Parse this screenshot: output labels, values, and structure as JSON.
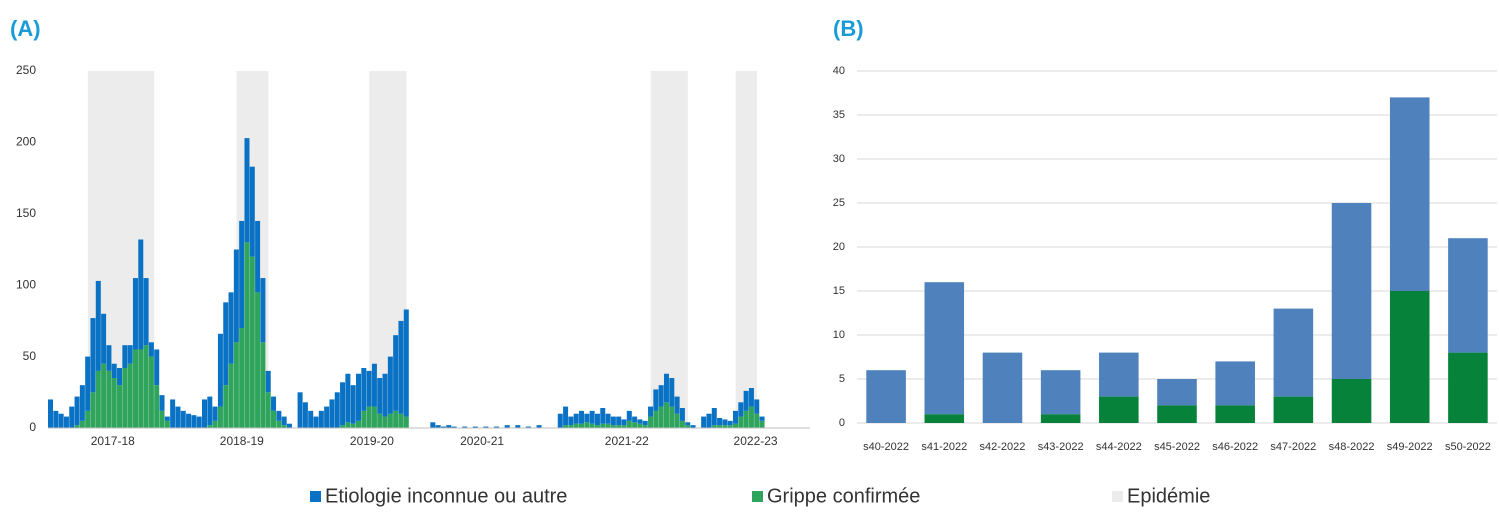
{
  "chart_data": [
    {
      "type": "bar",
      "title": "(A)",
      "stacked": true,
      "x": [
        0,
        2,
        4,
        6,
        8,
        10,
        12,
        14,
        16,
        18,
        20,
        22,
        24,
        26,
        28,
        30,
        32,
        34,
        36,
        38,
        40,
        42,
        44,
        46,
        48,
        50,
        52,
        54,
        56,
        58,
        60,
        62,
        64,
        66,
        68,
        70,
        72,
        74,
        76,
        78,
        80,
        82,
        84,
        86,
        88,
        90,
        94,
        96,
        98,
        100,
        102,
        104,
        106,
        108,
        110,
        112,
        114,
        116,
        118,
        120,
        122,
        124,
        126,
        128,
        130,
        132,
        134,
        144,
        146,
        148,
        150,
        152,
        156,
        160,
        164,
        168,
        172,
        176,
        180,
        184,
        192,
        194,
        196,
        198,
        200,
        202,
        204,
        206,
        208,
        210,
        212,
        214,
        216,
        218,
        220,
        222,
        224,
        226,
        228,
        230,
        232,
        234,
        236,
        238,
        240,
        242,
        246,
        248,
        250,
        252,
        254,
        256,
        258,
        260,
        262,
        264,
        266,
        268
      ],
      "series": [
        {
          "name": "Etiologie inconnue ou autre",
          "color": "#0a72c4",
          "values": [
            20,
            12,
            10,
            8,
            15,
            20,
            25,
            38,
            52,
            63,
            35,
            18,
            10,
            12,
            16,
            13,
            50,
            77,
            47,
            10,
            25,
            11,
            3,
            20,
            15,
            12,
            10,
            9,
            8,
            20,
            20,
            10,
            51,
            58,
            50,
            65,
            75,
            73,
            63,
            50,
            45,
            15,
            10,
            7,
            6,
            3,
            25,
            18,
            12,
            8,
            12,
            15,
            20,
            25,
            30,
            34,
            27,
            33,
            30,
            25,
            30,
            25,
            30,
            40,
            53,
            65,
            75,
            4,
            2,
            1,
            2,
            1,
            1,
            1,
            1,
            1,
            2,
            2,
            1,
            2,
            10,
            13,
            6,
            7,
            9,
            6,
            9,
            8,
            11,
            7,
            6,
            6,
            4,
            7,
            4,
            3,
            3,
            7,
            15,
            15,
            20,
            20,
            12,
            9,
            2,
            2,
            8,
            10,
            12,
            5,
            4,
            3,
            9,
            10,
            14,
            13,
            10,
            3
          ]
        },
        {
          "name": "Grippe confirmée",
          "color": "#2ea45c",
          "values": [
            0,
            0,
            0,
            0,
            0,
            2,
            5,
            12,
            25,
            40,
            45,
            40,
            35,
            30,
            42,
            45,
            55,
            55,
            58,
            50,
            30,
            12,
            5,
            0,
            0,
            0,
            0,
            0,
            0,
            0,
            2,
            5,
            15,
            30,
            45,
            60,
            70,
            130,
            120,
            95,
            60,
            25,
            12,
            5,
            2,
            0,
            0,
            0,
            0,
            0,
            0,
            0,
            0,
            0,
            2,
            4,
            3,
            5,
            12,
            15,
            15,
            10,
            8,
            10,
            12,
            10,
            8,
            0,
            0,
            0,
            0,
            0,
            0,
            0,
            0,
            0,
            0,
            0,
            0,
            0,
            0,
            2,
            2,
            3,
            3,
            4,
            3,
            2,
            3,
            3,
            2,
            2,
            2,
            5,
            4,
            3,
            2,
            8,
            12,
            15,
            18,
            15,
            10,
            5,
            2,
            0,
            0,
            0,
            2,
            2,
            2,
            2,
            3,
            8,
            12,
            15,
            10,
            5
          ]
        }
      ],
      "shade_label": "Epidémie",
      "shade_color": "#ececec",
      "shaded_periods": [
        [
          15,
          40
        ],
        [
          71,
          83
        ],
        [
          121,
          135
        ],
        [
          227,
          241
        ],
        [
          259,
          267
        ]
      ],
      "xlim": [
        0,
        287
      ],
      "xticks": [
        {
          "value": 24.4,
          "label": "2017-18"
        },
        {
          "value": 73,
          "label": "2018-19"
        },
        {
          "value": 122,
          "label": "2019-20"
        },
        {
          "value": 163.5,
          "label": "2020-21"
        },
        {
          "value": 218,
          "label": "2021-22"
        },
        {
          "value": 266.5,
          "label": "2022-23"
        }
      ],
      "ylim": [
        0,
        250
      ],
      "yticks": [
        0,
        50,
        100,
        150,
        200,
        250
      ],
      "grid": false
    },
    {
      "type": "bar",
      "title": "(B)",
      "stacked": true,
      "categories": [
        "s40-2022",
        "s41-2022",
        "s42-2022",
        "s43-2022",
        "s44-2022",
        "s45-2022",
        "s46-2022",
        "s47-2022",
        "s48-2022",
        "s49-2022",
        "s50-2022"
      ],
      "series": [
        {
          "color": "#4f81bd",
          "values": [
            6,
            15,
            8,
            5,
            5,
            3,
            5,
            10,
            20,
            22,
            13
          ]
        },
        {
          "color": "#06823a",
          "values": [
            0,
            1,
            0,
            1,
            3,
            2,
            2,
            3,
            5,
            15,
            8
          ]
        }
      ],
      "ylim": [
        0,
        40
      ],
      "yticks": [
        0,
        5,
        10,
        15,
        20,
        25,
        30,
        35,
        40
      ],
      "grid": true
    }
  ]
}
